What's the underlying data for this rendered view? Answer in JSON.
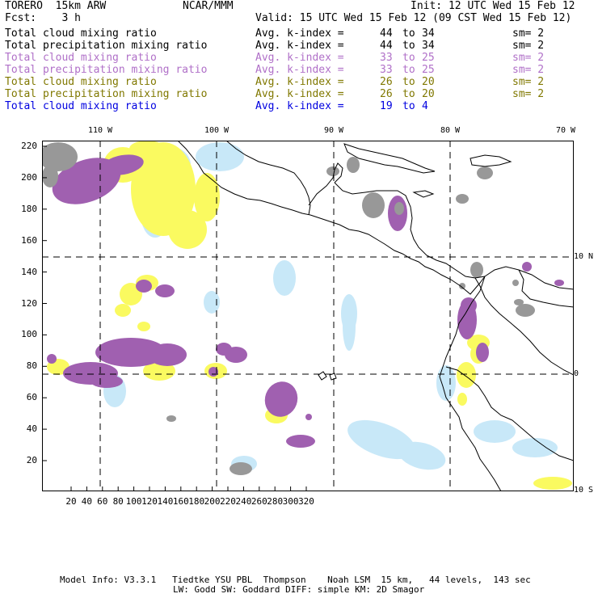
{
  "header": {
    "model": "TORERO  15km ARW",
    "org": "NCAR/MMM",
    "init": "Init: 12 UTC Wed 15 Feb 12",
    "fcst": "Fcst:    3 h",
    "valid": "Valid: 15 UTC Wed 15 Feb 12 (09 CST Wed 15 Feb 12)"
  },
  "colors": {
    "black": "#000000",
    "violet": "#b070c8",
    "olive": "#807800",
    "blue": "#0000e0",
    "gray_fill": "#989898",
    "purple_fill": "#a060b0",
    "yellow_fill": "#fafa60",
    "lightblue_fill": "#c8e8f8"
  },
  "legend": [
    {
      "field": "Total cloud mixing ratio",
      "index": "Avg. k-index =",
      "from": "44",
      "to_word": "to",
      "to": "34",
      "sm": "sm= 2",
      "color": "black"
    },
    {
      "field": "Total precipitation mixing ratio",
      "index": "Avg. k-index =",
      "from": "44",
      "to_word": "to",
      "to": "34",
      "sm": "sm= 2",
      "color": "black"
    },
    {
      "field": "Total cloud mixing ratio",
      "index": "Avg. k-index =",
      "from": "33",
      "to_word": "to",
      "to": "25",
      "sm": "sm= 2",
      "color": "violet"
    },
    {
      "field": "Total precipitation mixing ratio",
      "index": "Avg. k-index =",
      "from": "33",
      "to_word": "to",
      "to": "25",
      "sm": "sm= 2",
      "color": "violet"
    },
    {
      "field": "Total cloud mixing ratio",
      "index": "Avg. k-index =",
      "from": "26",
      "to_word": "to",
      "to": "20",
      "sm": "sm= 2",
      "color": "olive"
    },
    {
      "field": "Total precipitation mixing ratio",
      "index": "Avg. k-index =",
      "from": "26",
      "to_word": "to",
      "to": "20",
      "sm": "sm= 2",
      "color": "olive"
    },
    {
      "field": "Total cloud mixing ratio",
      "index": "Avg. k-index =",
      "from": "19",
      "to_word": "to",
      "to": "4",
      "sm": "",
      "color": "blue"
    }
  ],
  "axes": {
    "lon_labels": [
      "110 W",
      "100 W",
      "90 W",
      "80 W",
      "70 W"
    ],
    "lat_labels": [
      "10 N",
      "0",
      "10 S"
    ],
    "x_ticks": [
      "20",
      "40",
      "60",
      "80",
      "100",
      "120",
      "140",
      "160",
      "180",
      "200",
      "220",
      "240",
      "260",
      "280",
      "300",
      "320"
    ],
    "y_ticks": [
      "220",
      "200",
      "180",
      "160",
      "140",
      "120",
      "100",
      "80",
      "60",
      "40",
      "20"
    ]
  },
  "footer": {
    "line1": "Model Info: V3.3.1   Tiedtke YSU PBL  Thompson    Noah LSM  15 km,   44 levels,  143 sec",
    "line2": "LW: Godd SW: Goddard DIFF: simple KM: 2D Smagor"
  }
}
